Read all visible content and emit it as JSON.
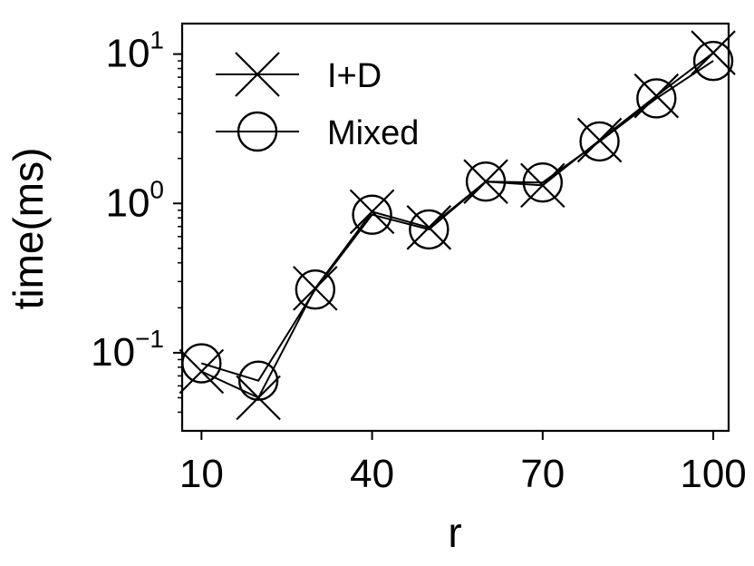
{
  "chart_data": {
    "type": "line",
    "xlabel": "r",
    "ylabel": "time(ms)",
    "yscale": "log",
    "xlim": [
      6.6,
      102.7
    ],
    "ylim": [
      0.03,
      16
    ],
    "x_ticks": [
      {
        "value": 10,
        "label": "10"
      },
      {
        "value": 40,
        "label": "40"
      },
      {
        "value": 70,
        "label": "70"
      },
      {
        "value": 100,
        "label": "100"
      }
    ],
    "y_ticks": [
      {
        "value": 0.1,
        "base": "10",
        "exp": "−1"
      },
      {
        "value": 1,
        "base": "10",
        "exp": "0"
      },
      {
        "value": 10,
        "base": "10",
        "exp": "1"
      }
    ],
    "legend": {
      "position": "top-left"
    },
    "grid": false,
    "series": [
      {
        "name": "I+D",
        "marker": "x",
        "x": [
          10,
          20,
          30,
          40,
          50,
          60,
          70,
          80,
          90,
          100
        ],
        "y": [
          0.075,
          0.05,
          0.27,
          0.88,
          0.69,
          1.4,
          1.32,
          2.65,
          5.25,
          10.2
        ]
      },
      {
        "name": "Mixed",
        "marker": "o",
        "x": [
          10,
          20,
          30,
          40,
          50,
          60,
          70,
          80,
          90,
          100
        ],
        "y": [
          0.085,
          0.065,
          0.265,
          0.84,
          0.67,
          1.4,
          1.38,
          2.6,
          5.05,
          9.0
        ]
      }
    ]
  }
}
